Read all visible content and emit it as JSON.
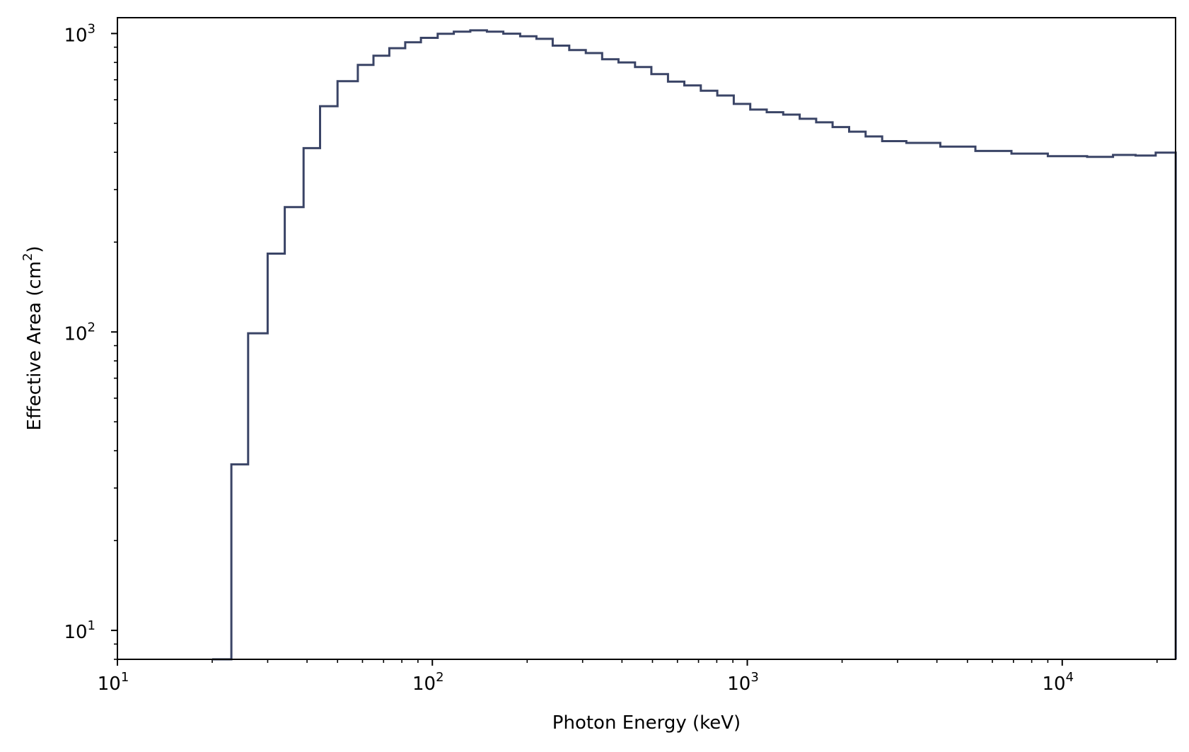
{
  "chart_data": {
    "type": "line",
    "drawstyle": "steps-post",
    "xscale": "log",
    "yscale": "log",
    "xlabel": "Photon Energy (keV)",
    "ylabel": {
      "prefix": "Effective Area (cm",
      "sup": "2",
      "suffix": ")"
    },
    "xlim": [
      10,
      22900
    ],
    "ylim": [
      8,
      1130
    ],
    "grid": false,
    "line_color": "#3a4466",
    "x_ticks": [
      {
        "base": "10",
        "exp": "1",
        "value": 10
      },
      {
        "base": "10",
        "exp": "2",
        "value": 100
      },
      {
        "base": "10",
        "exp": "3",
        "value": 1000
      },
      {
        "base": "10",
        "exp": "4",
        "value": 10000
      }
    ],
    "y_ticks": [
      {
        "base": "10",
        "exp": "1",
        "value": 10
      },
      {
        "base": "10",
        "exp": "2",
        "value": 100
      },
      {
        "base": "10",
        "exp": "3",
        "value": 1000
      }
    ],
    "series": [
      {
        "edges": [
          20,
          23,
          26,
          30,
          34,
          39,
          44,
          50,
          58,
          65,
          73,
          82,
          92,
          104,
          117,
          132,
          149,
          168,
          190,
          214,
          241,
          272,
          307,
          346,
          390,
          440,
          496,
          560,
          631,
          712,
          803,
          906,
          1022,
          1153,
          1300,
          1467,
          1655,
          1866,
          2106,
          2375,
          2680,
          3200,
          4100,
          5300,
          6900,
          9000,
          12000,
          14500,
          17100,
          19800
        ],
        "values": [
          8,
          36,
          99,
          183,
          262,
          413,
          571,
          692,
          785,
          843,
          893,
          935,
          967,
          998,
          1015,
          1025,
          1015,
          999,
          979,
          960,
          911,
          880,
          860,
          820,
          800,
          772,
          731,
          690,
          670,
          643,
          620,
          581,
          556,
          545,
          535,
          518,
          504,
          486,
          469,
          452,
          436,
          430,
          418,
          404,
          396,
          388,
          386,
          392,
          390,
          399
        ]
      }
    ]
  }
}
